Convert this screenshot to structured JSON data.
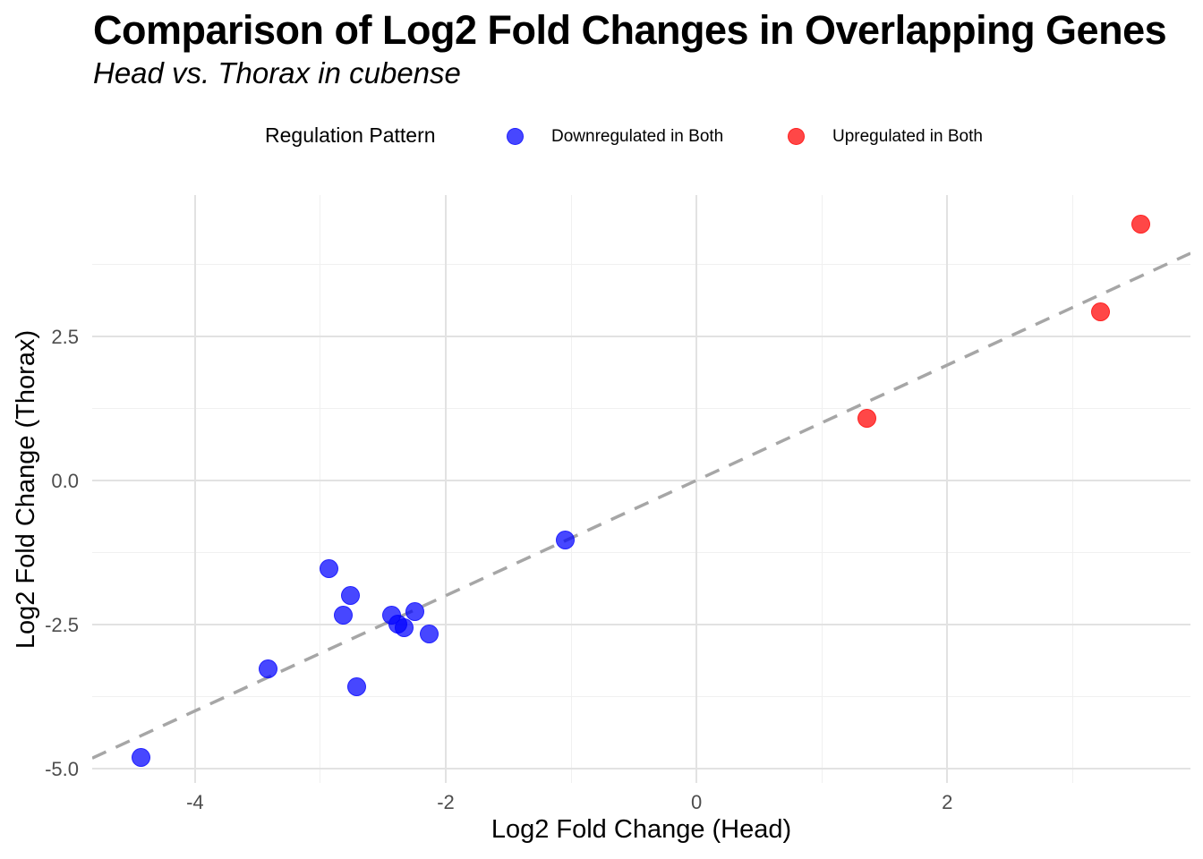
{
  "title": "Comparison of Log2 Fold Changes in Overlapping Genes",
  "subtitle": "Head vs. Thorax in cubense",
  "legend": {
    "title": "Regulation Pattern",
    "position": "top",
    "items": [
      {
        "label": "Downregulated in Both",
        "color": "#0000ff"
      },
      {
        "label": "Upregulated in Both",
        "color": "#ff0000"
      }
    ]
  },
  "chart_data": {
    "type": "scatter",
    "title": "Comparison of Log2 Fold Changes in Overlapping Genes",
    "subtitle": "Head vs. Thorax in cubense",
    "xlabel": "Log2 Fold Change (Head)",
    "ylabel": "Log2 Fold Change (Thorax)",
    "xlim": [
      -4.82,
      3.94
    ],
    "ylim": [
      -5.25,
      4.95
    ],
    "grid": "major+minor",
    "legend_position": "top",
    "x_ticks": [
      {
        "label": "-4",
        "value": -4
      },
      {
        "label": "-2",
        "value": -2
      },
      {
        "label": "0",
        "value": 0
      },
      {
        "label": "2",
        "value": 2
      }
    ],
    "y_ticks": [
      {
        "label": "2.5",
        "value": 2.5
      },
      {
        "label": "0.0",
        "value": 0.0
      },
      {
        "label": "-2.5",
        "value": -2.5
      },
      {
        "label": "-5.0",
        "value": -5.0
      }
    ],
    "x_minor_gridlines": [
      -3,
      -1,
      1,
      3
    ],
    "y_minor_gridlines": [
      3.75,
      1.25,
      -1.25,
      -3.75
    ],
    "marker_alpha": 0.72,
    "marker_diameter_px": 21,
    "reference_line": {
      "type": "identity y = x",
      "style": "dashed",
      "color": "#a6a6a6"
    },
    "series": [
      {
        "name": "Downregulated in Both",
        "color": "#0000ff",
        "points": [
          [
            -4.43,
            -4.8
          ],
          [
            -3.42,
            -3.27
          ],
          [
            -2.93,
            -1.53
          ],
          [
            -2.82,
            -2.34
          ],
          [
            -2.76,
            -2.0
          ],
          [
            -2.71,
            -3.58
          ],
          [
            -2.43,
            -2.34
          ],
          [
            -2.38,
            -2.5
          ],
          [
            -2.33,
            -2.56
          ],
          [
            -2.25,
            -2.28
          ],
          [
            -2.13,
            -2.66
          ],
          [
            -1.05,
            -1.04
          ]
        ]
      },
      {
        "name": "Upregulated in Both",
        "color": "#ff0000",
        "points": [
          [
            1.36,
            1.08
          ],
          [
            3.22,
            2.92
          ],
          [
            3.54,
            4.45
          ]
        ]
      }
    ]
  }
}
